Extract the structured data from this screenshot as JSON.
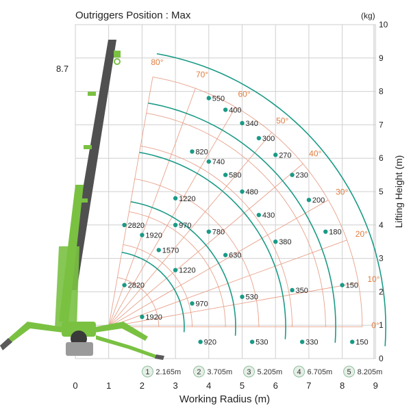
{
  "title": "Outriggers Position : Max",
  "unit": "(kg)",
  "boom_tip_height": "8.7",
  "x_axis": {
    "label": "Working Radius (m)",
    "ticks": [
      "0",
      "1",
      "2",
      "3",
      "4",
      "5",
      "6",
      "7",
      "8",
      "9"
    ]
  },
  "y_axis": {
    "label": "Lifting Height (m)",
    "ticks": [
      "0",
      "1",
      "2",
      "3",
      "4",
      "5",
      "6",
      "7",
      "8",
      "9",
      "10"
    ]
  },
  "angle_labels": [
    {
      "deg": 80,
      "text": "80°"
    },
    {
      "deg": 70,
      "text": "70°"
    },
    {
      "deg": 60,
      "text": "60°"
    },
    {
      "deg": 50,
      "text": "50°"
    },
    {
      "deg": 40,
      "text": "40°"
    },
    {
      "deg": 30,
      "text": "30°"
    },
    {
      "deg": 20,
      "text": "20°"
    },
    {
      "deg": 10,
      "text": "10°"
    },
    {
      "deg": 0,
      "text": "0°"
    }
  ],
  "boom_lengths": [
    {
      "number": "1",
      "length": "2.165m",
      "radius_m": 2.165
    },
    {
      "number": "2",
      "length": "3.705m",
      "radius_m": 3.705
    },
    {
      "number": "3",
      "length": "5.205m",
      "radius_m": 5.205
    },
    {
      "number": "4",
      "length": "6.705m",
      "radius_m": 6.705
    },
    {
      "number": "5",
      "length": "8.205m",
      "radius_m": 8.205
    }
  ],
  "load_points": [
    {
      "radius_m": 1.47,
      "height_m": 4.0,
      "label": "2820"
    },
    {
      "radius_m": 2.0,
      "height_m": 3.7,
      "label": "1920"
    },
    {
      "radius_m": 1.47,
      "height_m": 2.2,
      "label": "2820"
    },
    {
      "radius_m": 2.0,
      "height_m": 1.25,
      "label": "1920"
    },
    {
      "radius_m": 3.0,
      "height_m": 4.8,
      "label": "1220"
    },
    {
      "radius_m": 3.0,
      "height_m": 4.0,
      "label": "970"
    },
    {
      "radius_m": 2.5,
      "height_m": 3.25,
      "label": "1570"
    },
    {
      "radius_m": 3.0,
      "height_m": 2.65,
      "label": "1220"
    },
    {
      "radius_m": 3.5,
      "height_m": 1.65,
      "label": "970"
    },
    {
      "radius_m": 3.75,
      "height_m": 0.5,
      "label": "920"
    },
    {
      "radius_m": 3.5,
      "height_m": 6.2,
      "label": "820"
    },
    {
      "radius_m": 4.0,
      "height_m": 5.9,
      "label": "740"
    },
    {
      "radius_m": 4.5,
      "height_m": 5.5,
      "label": "580"
    },
    {
      "radius_m": 5.0,
      "height_m": 5.0,
      "label": "480"
    },
    {
      "radius_m": 5.5,
      "height_m": 4.3,
      "label": "430"
    },
    {
      "radius_m": 4.0,
      "height_m": 3.8,
      "label": "780"
    },
    {
      "radius_m": 4.5,
      "height_m": 3.1,
      "label": "630"
    },
    {
      "radius_m": 5.0,
      "height_m": 1.85,
      "label": "530"
    },
    {
      "radius_m": 5.3,
      "height_m": 0.5,
      "label": "530"
    },
    {
      "radius_m": 4.0,
      "height_m": 7.8,
      "label": "550"
    },
    {
      "radius_m": 4.5,
      "height_m": 7.45,
      "label": "400"
    },
    {
      "radius_m": 5.0,
      "height_m": 7.05,
      "label": "340"
    },
    {
      "radius_m": 5.5,
      "height_m": 6.6,
      "label": "300"
    },
    {
      "radius_m": 6.0,
      "height_m": 6.1,
      "label": "270"
    },
    {
      "radius_m": 6.5,
      "height_m": 5.5,
      "label": "230"
    },
    {
      "radius_m": 7.0,
      "height_m": 4.75,
      "label": "200"
    },
    {
      "radius_m": 7.5,
      "height_m": 3.8,
      "label": "180"
    },
    {
      "radius_m": 8.0,
      "height_m": 2.2,
      "label": "150"
    },
    {
      "radius_m": 8.3,
      "height_m": 0.5,
      "label": "150"
    },
    {
      "radius_m": 6.0,
      "height_m": 3.5,
      "label": "380"
    },
    {
      "radius_m": 6.5,
      "height_m": 2.05,
      "label": "350"
    },
    {
      "radius_m": 6.8,
      "height_m": 0.5,
      "label": "330"
    }
  ],
  "colors": {
    "curve": "#1a9a86",
    "angle_grid": "#e8a18a",
    "angle_text": "#e07b3c",
    "grid": "#cfcfcf",
    "boom_dark": "#505050",
    "boom_green": "#7ac142"
  }
}
